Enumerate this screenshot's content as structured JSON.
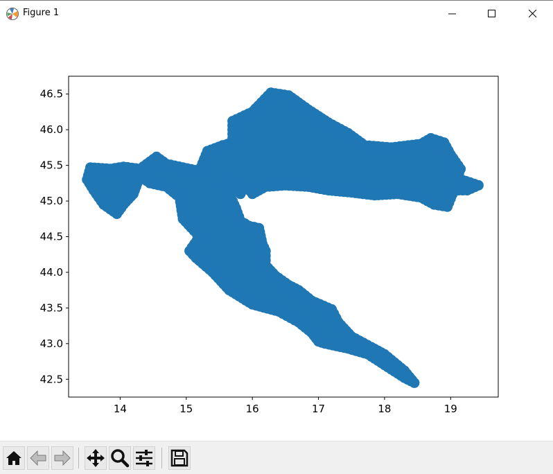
{
  "window": {
    "title": "Figure 1",
    "controls": [
      "minimize",
      "maximize",
      "close"
    ]
  },
  "toolbar": {
    "buttons": [
      {
        "name": "home-button",
        "icon": "home-icon"
      },
      {
        "name": "back-button",
        "icon": "arrow-left-icon"
      },
      {
        "name": "forward-button",
        "icon": "arrow-right-icon"
      },
      {
        "name": "pan-button",
        "icon": "move-icon"
      },
      {
        "name": "zoom-button",
        "icon": "magnifier-icon"
      },
      {
        "name": "subplots-button",
        "icon": "sliders-icon"
      },
      {
        "name": "save-button",
        "icon": "floppy-disk-icon"
      }
    ]
  },
  "chart_data": {
    "type": "scatter",
    "title": "",
    "xlabel": "",
    "ylabel": "",
    "xlim": [
      13.22,
      19.72
    ],
    "ylim": [
      42.25,
      46.75
    ],
    "xticks": [
      14,
      15,
      16,
      17,
      18,
      19
    ],
    "yticks": [
      42.5,
      43.0,
      43.5,
      44.0,
      44.5,
      45.0,
      45.5,
      46.0,
      46.5
    ],
    "ytick_labels": [
      "42.5",
      "43.0",
      "43.5",
      "44.0",
      "44.5",
      "45.0",
      "45.5",
      "46.0",
      "46.5"
    ],
    "grid": false,
    "legend": "none",
    "color": "#1f77b4",
    "outline": [
      [
        13.55,
        45.47
      ],
      [
        13.85,
        45.45
      ],
      [
        14.05,
        45.48
      ],
      [
        14.3,
        45.45
      ],
      [
        14.55,
        45.62
      ],
      [
        14.7,
        45.52
      ],
      [
        14.95,
        45.47
      ],
      [
        15.2,
        45.42
      ],
      [
        15.32,
        45.7
      ],
      [
        15.55,
        45.78
      ],
      [
        15.7,
        45.82
      ],
      [
        15.7,
        46.12
      ],
      [
        16.0,
        46.25
      ],
      [
        16.28,
        46.52
      ],
      [
        16.55,
        46.48
      ],
      [
        16.85,
        46.28
      ],
      [
        17.15,
        46.1
      ],
      [
        17.45,
        45.95
      ],
      [
        17.7,
        45.78
      ],
      [
        18.1,
        45.75
      ],
      [
        18.55,
        45.8
      ],
      [
        18.7,
        45.88
      ],
      [
        18.9,
        45.82
      ],
      [
        19.0,
        45.65
      ],
      [
        19.15,
        45.45
      ],
      [
        19.1,
        45.32
      ],
      [
        19.42,
        45.22
      ],
      [
        19.25,
        45.15
      ],
      [
        19.05,
        45.15
      ],
      [
        18.95,
        44.92
      ],
      [
        18.75,
        44.95
      ],
      [
        18.55,
        45.05
      ],
      [
        18.2,
        45.1
      ],
      [
        17.85,
        45.08
      ],
      [
        17.5,
        45.12
      ],
      [
        17.15,
        45.15
      ],
      [
        16.85,
        45.2
      ],
      [
        16.5,
        45.22
      ],
      [
        16.2,
        45.2
      ],
      [
        16.0,
        45.1
      ],
      [
        15.9,
        45.22
      ],
      [
        15.82,
        45.1
      ],
      [
        15.75,
        45.2
      ],
      [
        15.7,
        45.28
      ],
      [
        15.6,
        45.2
      ],
      [
        15.75,
        44.9
      ],
      [
        15.82,
        44.72
      ],
      [
        15.95,
        44.65
      ],
      [
        16.1,
        44.62
      ],
      [
        16.15,
        44.4
      ],
      [
        16.2,
        44.3
      ],
      [
        16.2,
        44.1
      ],
      [
        16.35,
        43.95
      ],
      [
        16.55,
        43.82
      ],
      [
        16.7,
        43.75
      ],
      [
        16.9,
        43.6
      ],
      [
        17.2,
        43.48
      ],
      [
        17.3,
        43.3
      ],
      [
        17.5,
        43.1
      ],
      [
        17.8,
        42.95
      ],
      [
        18.0,
        42.85
      ],
      [
        18.3,
        42.62
      ],
      [
        18.45,
        42.45
      ],
      [
        18.3,
        42.52
      ],
      [
        18.0,
        42.7
      ],
      [
        17.75,
        42.85
      ],
      [
        17.45,
        42.93
      ],
      [
        17.1,
        43.0
      ],
      [
        17.0,
        43.03
      ],
      [
        16.9,
        43.15
      ],
      [
        16.7,
        43.3
      ],
      [
        16.4,
        43.45
      ],
      [
        16.0,
        43.55
      ],
      [
        15.65,
        43.75
      ],
      [
        15.4,
        44.0
      ],
      [
        15.15,
        44.2
      ],
      [
        15.05,
        44.3
      ],
      [
        15.2,
        44.5
      ],
      [
        14.95,
        44.75
      ],
      [
        14.9,
        45.05
      ],
      [
        14.7,
        45.2
      ],
      [
        14.45,
        45.25
      ],
      [
        14.3,
        45.35
      ],
      [
        14.2,
        45.1
      ],
      [
        14.05,
        44.95
      ],
      [
        13.95,
        44.82
      ],
      [
        13.75,
        44.95
      ],
      [
        13.6,
        45.15
      ],
      [
        13.5,
        45.3
      ]
    ]
  }
}
